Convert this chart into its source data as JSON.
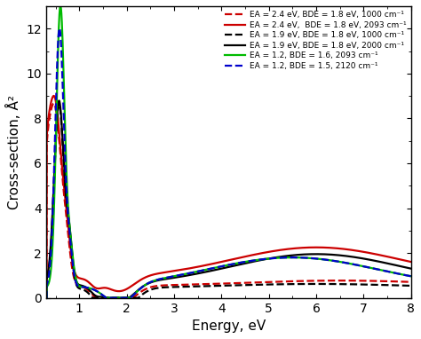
{
  "title": "",
  "xlabel": "Energy, eV",
  "ylabel": "Cross-section, Å²",
  "xlim": [
    0.3,
    8.0
  ],
  "ylim": [
    0,
    13
  ],
  "yticks": [
    0,
    2,
    4,
    6,
    8,
    10,
    12
  ],
  "xticks": [
    1,
    2,
    3,
    4,
    5,
    6,
    7,
    8
  ],
  "legend": [
    {
      "label": "EA = 2.4 eV, BDE = 1.8 eV, 1000 cm⁻¹",
      "color": "#cc0000",
      "ls": "--"
    },
    {
      "label": "EA = 2.4 eV,  BDE = 1.8 eV, 2093 cm⁻¹",
      "color": "#cc0000",
      "ls": "-"
    },
    {
      "label": "EA = 1.9 eV, BDE = 1.8 eV, 1000 cm⁻¹",
      "color": "#000000",
      "ls": "--"
    },
    {
      "label": "EA = 1.9 eV, BDE = 1.8 eV, 2000 cm⁻¹",
      "color": "#000000",
      "ls": "-"
    },
    {
      "label": "EA = 1.2, BDE = 1.6, 2093 cm⁻¹",
      "color": "#00bb00",
      "ls": "-"
    },
    {
      "label": "EA = 1.2, BDE = 1.5, 2120 cm⁻¹",
      "color": "#0000cc",
      "ls": "--"
    }
  ],
  "background_color": "#ffffff"
}
